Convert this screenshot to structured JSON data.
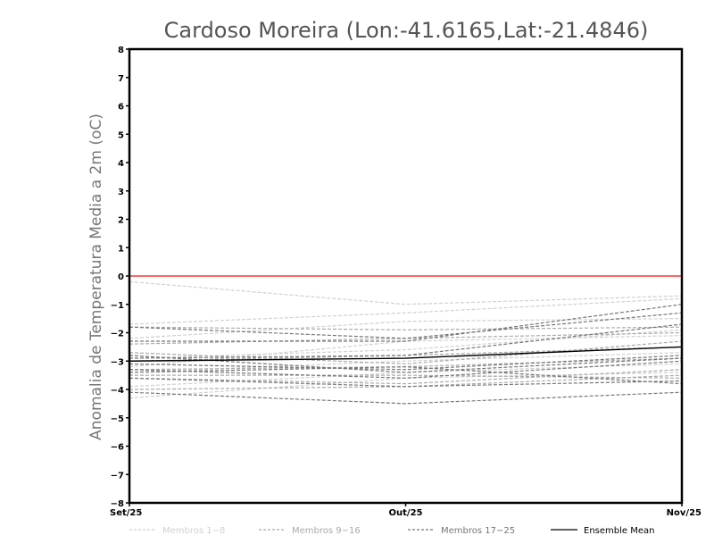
{
  "chart_data": {
    "type": "line",
    "title": "Cardoso Moreira (Lon:-41.6165,Lat:-21.4846)",
    "ylabel": "Anomalia de Temperatura Media a 2m (oC)",
    "xlabel": "",
    "categories": [
      "Set/25",
      "Out/25",
      "Nov/25"
    ],
    "ylim": [
      -8,
      8
    ],
    "yticks": [
      -8,
      -7,
      -6,
      -5,
      -4,
      -3,
      -2,
      -1,
      0,
      1,
      2,
      3,
      4,
      5,
      6,
      7,
      8
    ],
    "grid": false,
    "reference_line": {
      "y": 0,
      "color": "#ff3333"
    },
    "legend_position": "bottom",
    "legend": [
      {
        "label": "Membros 1-8",
        "color": "#d0d0d0",
        "style": "dashed"
      },
      {
        "label": "Membros 9-16",
        "color": "#aaaaaa",
        "style": "dashed"
      },
      {
        "label": "Membros 17-25",
        "color": "#777777",
        "style": "dashed"
      },
      {
        "label": "Ensemble Mean",
        "color": "#000000",
        "style": "solid"
      }
    ],
    "series": [
      {
        "group": 0,
        "values": [
          -0.2,
          -1.0,
          -0.7
        ]
      },
      {
        "group": 0,
        "values": [
          -1.7,
          -1.3,
          -0.8
        ]
      },
      {
        "group": 0,
        "values": [
          -2.2,
          -1.6,
          -1.5
        ]
      },
      {
        "group": 0,
        "values": [
          -2.9,
          -2.6,
          -1.9
        ]
      },
      {
        "group": 0,
        "values": [
          -3.4,
          -3.0,
          -2.7
        ]
      },
      {
        "group": 0,
        "values": [
          -3.9,
          -3.4,
          -3.1
        ]
      },
      {
        "group": 0,
        "values": [
          -4.3,
          -3.6,
          -3.4
        ]
      },
      {
        "group": 0,
        "values": [
          -3.2,
          -2.3,
          -2.1
        ]
      },
      {
        "group": 1,
        "values": [
          -1.8,
          -1.9,
          -1.8
        ]
      },
      {
        "group": 1,
        "values": [
          -2.4,
          -2.2,
          -2.0
        ]
      },
      {
        "group": 1,
        "values": [
          -3.0,
          -2.8,
          -2.5
        ]
      },
      {
        "group": 1,
        "values": [
          -3.3,
          -3.2,
          -2.9
        ]
      },
      {
        "group": 1,
        "values": [
          -3.6,
          -3.8,
          -3.3
        ]
      },
      {
        "group": 1,
        "values": [
          -2.7,
          -3.1,
          -2.3
        ]
      },
      {
        "group": 1,
        "values": [
          -3.5,
          -3.5,
          -3.6
        ]
      },
      {
        "group": 1,
        "values": [
          -4.0,
          -3.9,
          -3.5
        ]
      },
      {
        "group": 2,
        "values": [
          -1.8,
          -2.2,
          -1.3
        ]
      },
      {
        "group": 2,
        "values": [
          -2.3,
          -2.3,
          -1.0
        ]
      },
      {
        "group": 2,
        "values": [
          -2.9,
          -2.8,
          -1.7
        ]
      },
      {
        "group": 2,
        "values": [
          -3.1,
          -3.3,
          -2.8
        ]
      },
      {
        "group": 2,
        "values": [
          -3.3,
          -3.6,
          -3.0
        ]
      },
      {
        "group": 2,
        "values": [
          -3.6,
          -3.9,
          -3.7
        ]
      },
      {
        "group": 2,
        "values": [
          -4.1,
          -4.5,
          -4.1
        ]
      },
      {
        "group": 2,
        "values": [
          -3.4,
          -3.2,
          -3.8
        ]
      },
      {
        "group": 2,
        "values": [
          -2.8,
          -3.4,
          -2.9
        ]
      },
      {
        "group": 3,
        "values": [
          -3.0,
          -2.9,
          -2.5
        ]
      }
    ]
  }
}
